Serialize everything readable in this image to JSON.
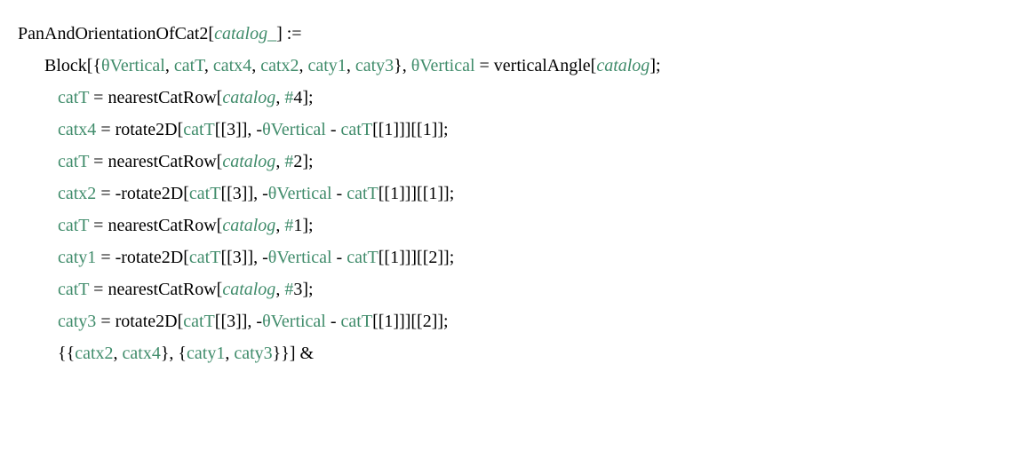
{
  "lines": {
    "l1": {
      "p1": "PanAndOrientationOfCat2",
      "p2": "[",
      "p3": "catalog_",
      "p4": "] :="
    },
    "l2": {
      "p1": "Block",
      "p2": "[{",
      "p3": "θVertical",
      "p4": ",",
      "p5": " catT",
      "p6": ",",
      "p7": " catx4",
      "p8": ",",
      "p9": " catx2",
      "p10": ",",
      "p11": " caty1",
      "p12": ",",
      "p13": " caty3",
      "p14": "},",
      "p15": " θVertical",
      "p16": " = ",
      "p17": "verticalAngle",
      "p18": "[",
      "p19": "catalog",
      "p20": "];"
    },
    "l3": {
      "p1": "catT",
      "p2": " = ",
      "p3": "nearestCatRow",
      "p4": "[",
      "p5": "catalog",
      "p6": ",",
      "p7": " #",
      "p8": "4",
      "p9": "];"
    },
    "l4": {
      "p1": "catx4",
      "p2": " = ",
      "p3": "rotate2D",
      "p4": "[",
      "p5": "catT",
      "p6": "[[",
      "p7": "3",
      "p8": "]], -",
      "p9": "θVertical",
      "p10": " - ",
      "p11": "catT",
      "p12": "[[",
      "p13": "1",
      "p14": "]]][[",
      "p15": "1",
      "p16": "]];"
    },
    "l5": {
      "p1": "catT",
      "p2": " = ",
      "p3": "nearestCatRow",
      "p4": "[",
      "p5": "catalog",
      "p6": ",",
      "p7": " #",
      "p8": "2",
      "p9": "];"
    },
    "l6": {
      "p1": "catx2",
      "p2": " = -",
      "p3": "rotate2D",
      "p4": "[",
      "p5": "catT",
      "p6": "[[",
      "p7": "3",
      "p8": "]], -",
      "p9": "θVertical",
      "p10": " - ",
      "p11": "catT",
      "p12": "[[",
      "p13": "1",
      "p14": "]]][[",
      "p15": "1",
      "p16": "]];"
    },
    "l7": {
      "p1": "catT",
      "p2": " = ",
      "p3": "nearestCatRow",
      "p4": "[",
      "p5": "catalog",
      "p6": ",",
      "p7": " #",
      "p8": "1",
      "p9": "];"
    },
    "l8": {
      "p1": "caty1",
      "p2": " = -",
      "p3": "rotate2D",
      "p4": "[",
      "p5": "catT",
      "p6": "[[",
      "p7": "3",
      "p8": "]], -",
      "p9": "θVertical",
      "p10": " - ",
      "p11": "catT",
      "p12": "[[",
      "p13": "1",
      "p14": "]]][[",
      "p15": "2",
      "p16": "]];"
    },
    "l9": {
      "p1": "catT",
      "p2": " = ",
      "p3": "nearestCatRow",
      "p4": "[",
      "p5": "catalog",
      "p6": ",",
      "p7": " #",
      "p8": "3",
      "p9": "];"
    },
    "l10": {
      "p1": "caty3",
      "p2": " = ",
      "p3": "rotate2D",
      "p4": "[",
      "p5": "catT",
      "p6": "[[",
      "p7": "3",
      "p8": "]], -",
      "p9": "θVertical",
      "p10": " - ",
      "p11": "catT",
      "p12": "[[",
      "p13": "1",
      "p14": "]]][[",
      "p15": "2",
      "p16": "]];"
    },
    "l11": {
      "p1": "{{",
      "p2": "catx2",
      "p3": ",",
      "p4": " catx4",
      "p5": "}, {",
      "p6": "caty1",
      "p7": ",",
      "p8": " caty3",
      "p9": "}}] &"
    }
  }
}
